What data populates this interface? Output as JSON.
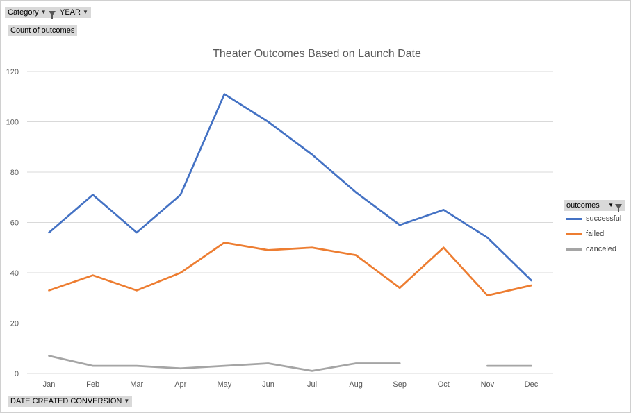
{
  "pivot": {
    "category_label": "Category",
    "year_label": "YEAR",
    "values_label": "Count of outcomes",
    "axis_field_label": "DATE CREATED CONVERSION"
  },
  "legend": {
    "title": "outcomes"
  },
  "colors": {
    "successful": "#4472c4",
    "failed": "#ed7d31",
    "canceled": "#a5a5a5",
    "grid": "#d9d9d9",
    "axis_text": "#595959",
    "title": "#595959"
  },
  "chart_data": {
    "type": "line",
    "title": "Theater Outcomes Based on Launch Date",
    "xlabel": "",
    "ylabel": "",
    "ylim": [
      0,
      120
    ],
    "yticks": [
      0,
      20,
      40,
      60,
      80,
      100,
      120
    ],
    "grid": true,
    "legend_position": "right",
    "categories": [
      "Jan",
      "Feb",
      "Mar",
      "Apr",
      "May",
      "Jun",
      "Jul",
      "Aug",
      "Sep",
      "Oct",
      "Nov",
      "Dec"
    ],
    "series": [
      {
        "name": "successful",
        "color": "#4472c4",
        "values": [
          56,
          71,
          56,
          71,
          111,
          100,
          87,
          72,
          59,
          65,
          54,
          37
        ]
      },
      {
        "name": "failed",
        "color": "#ed7d31",
        "values": [
          33,
          39,
          33,
          40,
          52,
          49,
          50,
          47,
          34,
          50,
          31,
          35
        ]
      },
      {
        "name": "canceled",
        "color": "#a5a5a5",
        "values": [
          7,
          3,
          3,
          2,
          3,
          4,
          1,
          4,
          4,
          null,
          3,
          3
        ]
      }
    ]
  }
}
